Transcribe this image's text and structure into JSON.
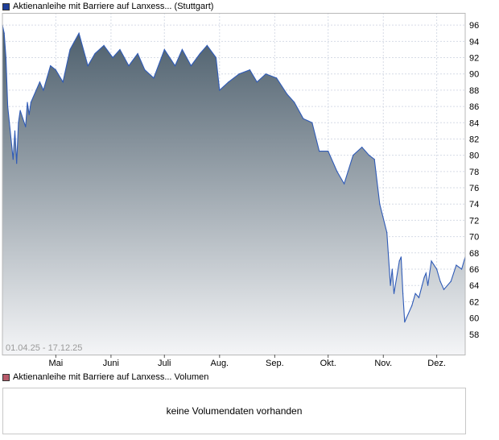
{
  "price_legend": {
    "label": "Aktienanleihe mit Barriere auf Lanxess... (Stuttgart)",
    "color": "#1f3f99"
  },
  "volume_legend": {
    "label": "Aktienanleihe mit Barriere auf Lanxess... Volumen",
    "color": "#b85a6a"
  },
  "volume_message": "keine Volumendaten vorhanden",
  "colors": {
    "line": "#2f5bb7",
    "fill_top": "#4a5c6a",
    "fill_bottom": "#f4f5f7",
    "grid": "#d6dbe6",
    "frame": "#b8b8b8"
  },
  "chart_data": {
    "type": "area",
    "date_range_label": "01.04.25 - 17.12.25",
    "x_range": [
      "2025-04-01",
      "2025-12-17"
    ],
    "ylim": [
      55.5,
      97.5
    ],
    "y_ticks": [
      58,
      60,
      62,
      64,
      66,
      68,
      70,
      72,
      74,
      76,
      78,
      80,
      82,
      84,
      86,
      88,
      90,
      92,
      94,
      96
    ],
    "x_ticks": [
      {
        "label": "Mai",
        "date": "2025-05-01"
      },
      {
        "label": "Juni",
        "date": "2025-06-01"
      },
      {
        "label": "Juli",
        "date": "2025-07-01"
      },
      {
        "label": "Aug.",
        "date": "2025-08-01"
      },
      {
        "label": "Sep.",
        "date": "2025-09-01"
      },
      {
        "label": "Okt.",
        "date": "2025-10-01"
      },
      {
        "label": "Nov.",
        "date": "2025-11-01"
      },
      {
        "label": "Dez.",
        "date": "2025-12-01"
      }
    ],
    "grid": true,
    "series": [
      {
        "name": "Aktienanleihe mit Barriere auf Lanxess... (Stuttgart)",
        "x": [
          "2025-04-01",
          "2025-04-02",
          "2025-04-03",
          "2025-04-04",
          "2025-04-07",
          "2025-04-08",
          "2025-04-09",
          "2025-04-10",
          "2025-04-11",
          "2025-04-14",
          "2025-04-15",
          "2025-04-16",
          "2025-04-17",
          "2025-04-22",
          "2025-04-24",
          "2025-04-28",
          "2025-05-01",
          "2025-05-05",
          "2025-05-09",
          "2025-05-14",
          "2025-05-19",
          "2025-05-23",
          "2025-05-28",
          "2025-06-02",
          "2025-06-06",
          "2025-06-11",
          "2025-06-16",
          "2025-06-20",
          "2025-06-25",
          "2025-07-01",
          "2025-07-07",
          "2025-07-11",
          "2025-07-16",
          "2025-07-21",
          "2025-07-25",
          "2025-07-30",
          "2025-08-01",
          "2025-08-06",
          "2025-08-12",
          "2025-08-18",
          "2025-08-22",
          "2025-08-27",
          "2025-09-02",
          "2025-09-08",
          "2025-09-12",
          "2025-09-17",
          "2025-09-22",
          "2025-09-26",
          "2025-10-01",
          "2025-10-06",
          "2025-10-10",
          "2025-10-15",
          "2025-10-20",
          "2025-10-24",
          "2025-10-27",
          "2025-10-30",
          "2025-11-03",
          "2025-11-05",
          "2025-11-06",
          "2025-11-07",
          "2025-11-10",
          "2025-11-11",
          "2025-11-12",
          "2025-11-13",
          "2025-11-17",
          "2025-11-19",
          "2025-11-21",
          "2025-11-24",
          "2025-11-25",
          "2025-11-26",
          "2025-11-28",
          "2025-12-01",
          "2025-12-03",
          "2025-12-05",
          "2025-12-09",
          "2025-12-12",
          "2025-12-15",
          "2025-12-17"
        ],
        "y": [
          96.0,
          95.0,
          92.0,
          86.0,
          79.5,
          83.0,
          79.0,
          84.0,
          85.5,
          83.5,
          86.5,
          85.0,
          86.5,
          89.0,
          88.0,
          91.0,
          90.5,
          89.0,
          93.0,
          95.0,
          91.0,
          92.5,
          93.5,
          92.0,
          93.0,
          91.0,
          92.5,
          90.5,
          89.5,
          93.0,
          91.0,
          93.0,
          91.0,
          92.5,
          93.5,
          92.0,
          88.0,
          89.0,
          90.0,
          90.5,
          89.0,
          90.0,
          89.5,
          87.5,
          86.5,
          84.5,
          84.0,
          80.5,
          80.5,
          78.0,
          76.5,
          80.0,
          81.0,
          80.0,
          79.5,
          74.0,
          70.5,
          64.0,
          66.0,
          63.0,
          67.0,
          67.5,
          63.0,
          59.5,
          61.5,
          63.0,
          62.5,
          65.0,
          65.5,
          64.0,
          67.0,
          66.0,
          64.5,
          63.5,
          64.5,
          66.5,
          66.0,
          67.5
        ]
      }
    ]
  }
}
